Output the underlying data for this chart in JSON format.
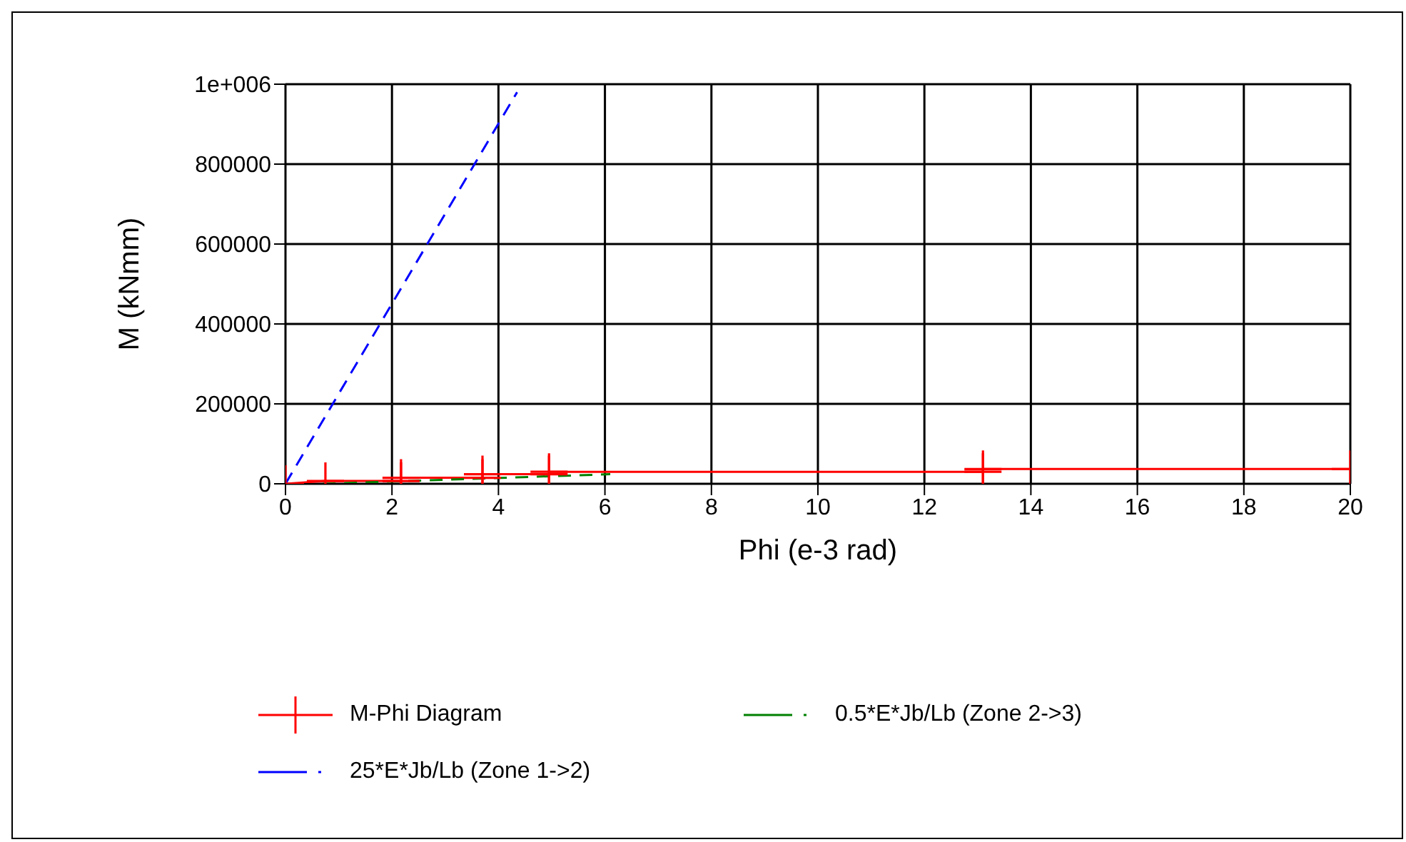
{
  "chart_data": {
    "type": "line",
    "xlabel": "Phi (e-3 rad)",
    "ylabel": "M (kNmm)",
    "xlim": [
      0,
      20
    ],
    "xticks": [
      0,
      2,
      4,
      6,
      8,
      10,
      12,
      14,
      16,
      18,
      20
    ],
    "ylim": [
      0,
      1000000
    ],
    "yticks": [
      0,
      200000,
      400000,
      600000,
      800000,
      {
        "value": 1000000,
        "label": "1e+006"
      }
    ],
    "grid": true,
    "legend": "bottom",
    "series": [
      {
        "name": "M-Phi Diagram",
        "color": "#ff0000",
        "marker": "cross",
        "line_style": "solid",
        "x": [
          0,
          0.75,
          2.17,
          2.17,
          3.7,
          3.7,
          4.95,
          4.95,
          13.1,
          13.1,
          20
        ],
        "values": [
          0,
          7000,
          7000,
          15000,
          15000,
          24000,
          24000,
          30000,
          30000,
          37000,
          37000
        ]
      },
      {
        "name": "0.5*E*Jb/Lb (Zone 2->3)",
        "color": "#008000",
        "marker": "none",
        "line_style": "dashed",
        "x": [
          0.7,
          6.1
        ],
        "values": [
          0,
          24000
        ]
      },
      {
        "name": "25*E*Jb/Lb (Zone 1->2)",
        "color": "#0000ff",
        "marker": "none",
        "line_style": "dashed",
        "x": [
          0,
          4.35
        ],
        "values": [
          0,
          980000
        ]
      }
    ]
  }
}
